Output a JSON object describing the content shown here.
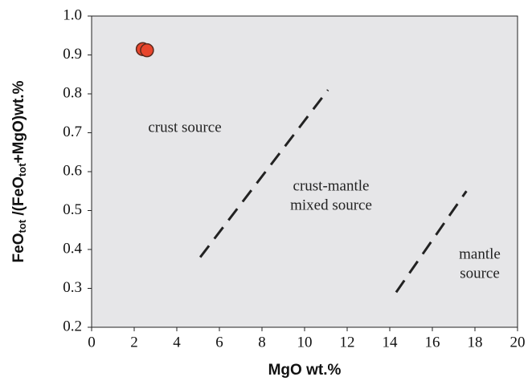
{
  "chart_data": {
    "type": "scatter",
    "xlabel": "MgO wt.%",
    "ylabel": [
      "FeO",
      "tot",
      " /(FeO",
      "tot",
      "+MgO)wt.%"
    ],
    "xlim": [
      0,
      20
    ],
    "xticks": [
      0,
      2,
      4,
      6,
      8,
      10,
      12,
      14,
      16,
      18,
      20
    ],
    "ylim": [
      0.2,
      1
    ],
    "yticks": [
      0.2,
      0.3,
      0.4,
      0.5,
      0.6,
      0.7,
      0.8,
      0.9,
      {
        "value": 1,
        "label": "1.0"
      }
    ],
    "series": [
      {
        "color": "#e8452c",
        "x": [
          2.4,
          2.6
        ],
        "values": [
          0.915,
          0.912
        ]
      }
    ],
    "boundaries": [
      {
        "x": [
          5.1,
          11.1
        ],
        "y": [
          0.38,
          0.81
        ]
      },
      {
        "x": [
          14.3,
          17.6
        ],
        "y": [
          0.29,
          0.55
        ]
      }
    ],
    "annotations": [
      [
        "crust source"
      ],
      [
        "crust-mantle",
        "mixed source"
      ],
      [
        "mantle",
        "source"
      ]
    ]
  }
}
